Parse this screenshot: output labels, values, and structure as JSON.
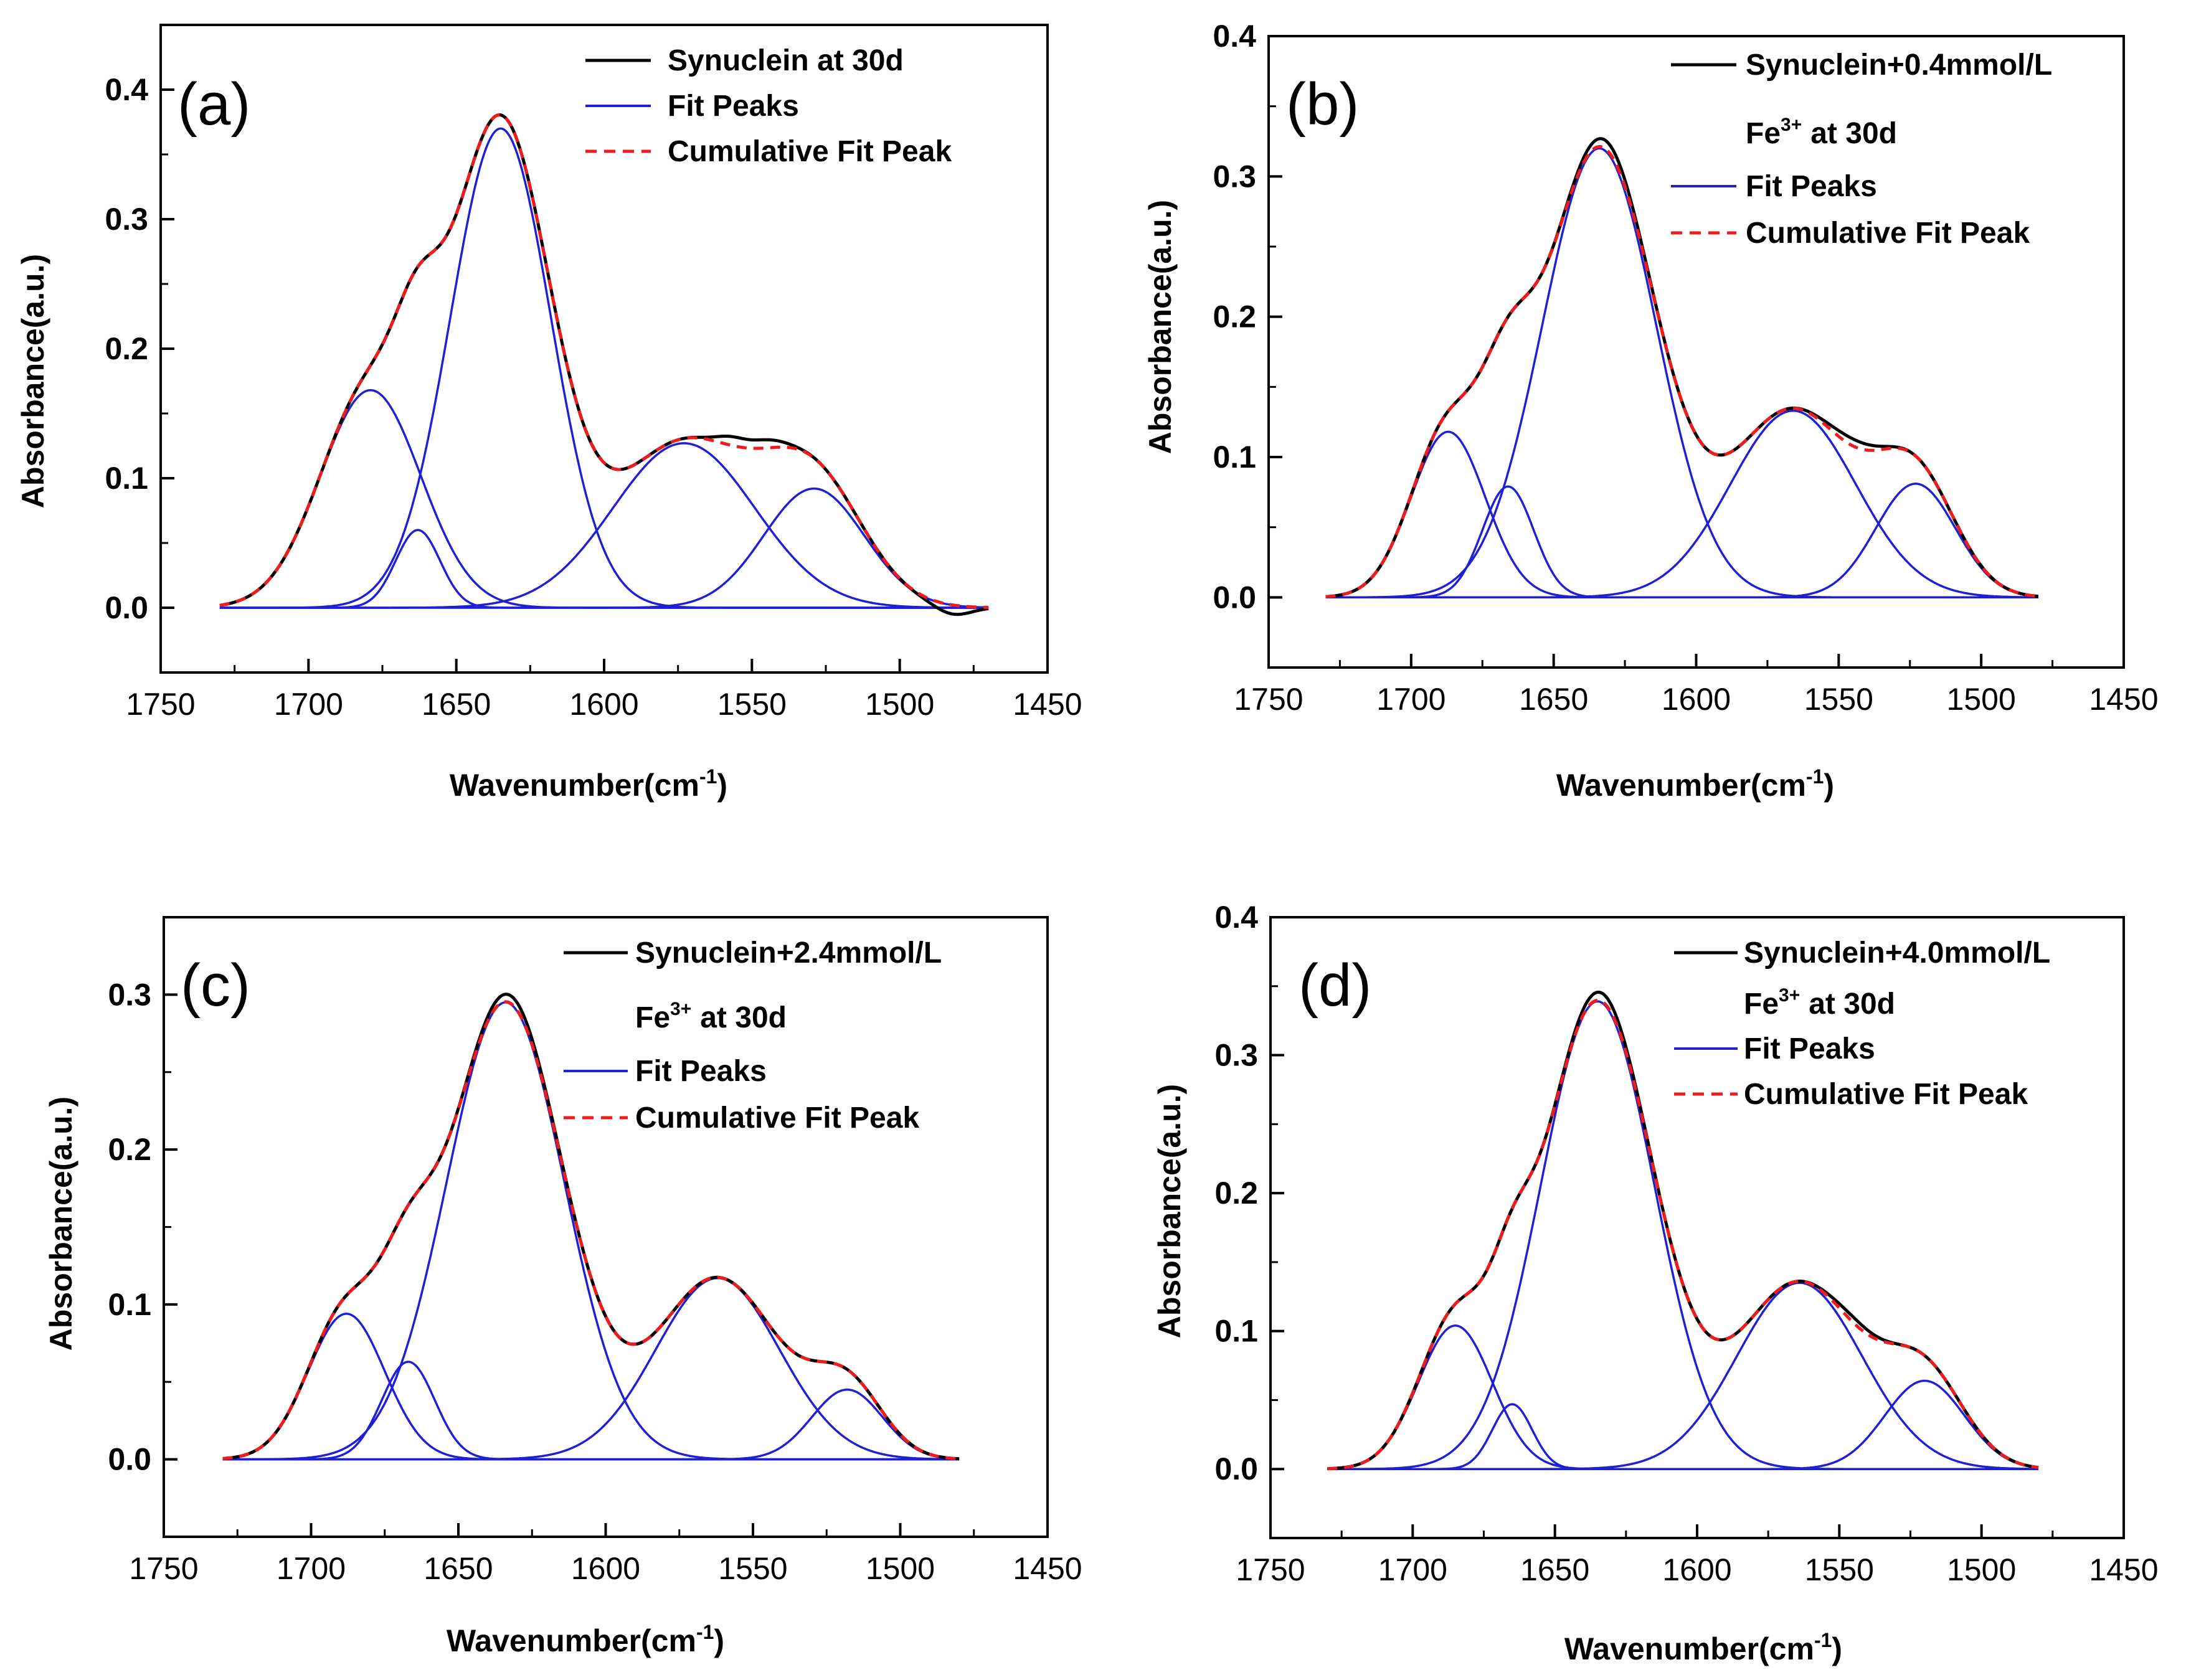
{
  "chart_data": [
    {
      "type": "line",
      "panel_label": "(a)",
      "title": "",
      "xlabel": "Wavenumber(cm",
      "xlabel_sup": "-1",
      "xlabel_close": ")",
      "ylabel": "Absorbance(a.u.)",
      "xlim": [
        1750,
        1450
      ],
      "ylim": [
        -0.05,
        0.45
      ],
      "x_ticks": [
        1750,
        1700,
        1650,
        1600,
        1550,
        1500,
        1450
      ],
      "x_tick_labels": [
        "1750",
        "1700",
        "1650",
        "1600",
        "1550",
        "1500",
        "1450"
      ],
      "y_ticks": [
        0.0,
        0.1,
        0.2,
        0.3,
        0.4
      ],
      "y_tick_labels": [
        "0.0",
        "0.1",
        "0.2",
        "0.3",
        "0.4"
      ],
      "x_range": [
        1730,
        1470
      ],
      "legend": {
        "placement": "top-right",
        "measured": "Synuclein at 30d",
        "measured_line2": "",
        "fit": "Fit Peaks",
        "cumulative": "Cumulative Fit Peak"
      },
      "colors": {
        "measured": "#000000",
        "fit": "#1f1fd6",
        "cumulative": "#ee1c1c"
      },
      "fit_peaks": [
        {
          "center": 1679,
          "height": 0.168,
          "width": 17
        },
        {
          "center": 1663,
          "height": 0.06,
          "width": 7.5
        },
        {
          "center": 1635,
          "height": 0.37,
          "width": 17
        },
        {
          "center": 1573,
          "height": 0.127,
          "width": 24
        },
        {
          "center": 1529,
          "height": 0.092,
          "width": 17
        }
      ],
      "measured_deviation": [
        {
          "center": 1557,
          "amp": 0.006,
          "width": 5
        },
        {
          "center": 1545,
          "amp": 0.006,
          "width": 6
        },
        {
          "center": 1482,
          "amp": -0.007,
          "width": 6
        }
      ]
    },
    {
      "type": "line",
      "panel_label": "(b)",
      "title": "",
      "xlabel": "Wavenumber(cm",
      "xlabel_sup": "-1",
      "xlabel_close": ")",
      "ylabel": "Absorbance(a.u.)",
      "xlim": [
        1750,
        1450
      ],
      "ylim": [
        -0.05,
        0.4
      ],
      "x_ticks": [
        1750,
        1700,
        1650,
        1600,
        1550,
        1500,
        1450
      ],
      "x_tick_labels": [
        "1750",
        "1700",
        "1650",
        "1600",
        "1550",
        "1500",
        "1450"
      ],
      "y_ticks": [
        0.0,
        0.1,
        0.2,
        0.3,
        0.4
      ],
      "y_tick_labels": [
        "0.0",
        "0.1",
        "0.2",
        "0.3",
        "0.4"
      ],
      "x_range": [
        1730,
        1480
      ],
      "legend": {
        "placement": "top-right",
        "measured": "Synuclein+0.4mmol/L",
        "measured_line2": "at 30d",
        "ion_base": "Fe",
        "ion_sup": "3+",
        "fit": "Fit Peaks",
        "cumulative": "Cumulative Fit Peak"
      },
      "colors": {
        "measured": "#000000",
        "fit": "#1f1fd6",
        "cumulative": "#ee1c1c"
      },
      "fit_peaks": [
        {
          "center": 1687,
          "height": 0.118,
          "width": 13
        },
        {
          "center": 1666,
          "height": 0.079,
          "width": 9
        },
        {
          "center": 1634,
          "height": 0.32,
          "width": 20
        },
        {
          "center": 1566,
          "height": 0.133,
          "width": 22
        },
        {
          "center": 1523,
          "height": 0.081,
          "width": 14
        }
      ],
      "measured_deviation": [
        {
          "center": 1545,
          "amp": 0.005,
          "width": 8
        },
        {
          "center": 1631,
          "amp": 0.006,
          "width": 8
        }
      ]
    },
    {
      "type": "line",
      "panel_label": "(c)",
      "title": "",
      "xlabel": "Wavenumber(cm",
      "xlabel_sup": "-1",
      "xlabel_close": ")",
      "ylabel": "Absorbance(a.u.)",
      "xlim": [
        1750,
        1450
      ],
      "ylim": [
        -0.05,
        0.35
      ],
      "x_ticks": [
        1750,
        1700,
        1650,
        1600,
        1550,
        1500,
        1450
      ],
      "x_tick_labels": [
        "1750",
        "1700",
        "1650",
        "1600",
        "1550",
        "1500",
        "1450"
      ],
      "y_ticks": [
        0.0,
        0.1,
        0.2,
        0.3
      ],
      "y_tick_labels": [
        "0.0",
        "0.1",
        "0.2",
        "0.3"
      ],
      "x_range": [
        1730,
        1480
      ],
      "legend": {
        "placement": "top-right",
        "measured": "Synuclein+2.4mmol/L",
        "measured_line2": "at 30d",
        "ion_base": "Fe",
        "ion_sup": "3+",
        "fit": "Fit Peaks",
        "cumulative": "Cumulative Fit Peak"
      },
      "colors": {
        "measured": "#000000",
        "fit": "#1f1fd6",
        "cumulative": "#ee1c1c"
      },
      "fit_peaks": [
        {
          "center": 1688,
          "height": 0.094,
          "width": 13
        },
        {
          "center": 1667,
          "height": 0.063,
          "width": 9
        },
        {
          "center": 1634,
          "height": 0.295,
          "width": 20
        },
        {
          "center": 1562,
          "height": 0.117,
          "width": 21
        },
        {
          "center": 1518,
          "height": 0.045,
          "width": 12
        }
      ],
      "measured_deviation": [
        {
          "center": 1632,
          "amp": 0.005,
          "width": 8
        }
      ]
    },
    {
      "type": "line",
      "panel_label": "(d)",
      "title": "",
      "xlabel": "Wavenumber(cm",
      "xlabel_sup": "-1",
      "xlabel_close": ")",
      "ylabel": "Absorbance(a.u.)",
      "xlim": [
        1750,
        1450
      ],
      "ylim": [
        -0.05,
        0.4
      ],
      "x_ticks": [
        1750,
        1700,
        1650,
        1600,
        1550,
        1500,
        1450
      ],
      "x_tick_labels": [
        "1750",
        "1700",
        "1650",
        "1600",
        "1550",
        "1500",
        "1450"
      ],
      "y_ticks": [
        0.0,
        0.1,
        0.2,
        0.3,
        0.4
      ],
      "y_tick_labels": [
        "0.0",
        "0.1",
        "0.2",
        "0.3",
        "0.4"
      ],
      "x_range": [
        1730,
        1480
      ],
      "legend": {
        "placement": "top-right",
        "measured": "Synuclein+4.0mmol/L",
        "measured_line2": "at 30d",
        "ion_base": "Fe",
        "ion_sup": "3+",
        "fit": "Fit Peaks",
        "cumulative": "Cumulative Fit Peak"
      },
      "colors": {
        "measured": "#000000",
        "fit": "#1f1fd6",
        "cumulative": "#ee1c1c"
      },
      "fit_peaks": [
        {
          "center": 1685,
          "height": 0.104,
          "width": 13
        },
        {
          "center": 1665,
          "height": 0.047,
          "width": 7
        },
        {
          "center": 1635,
          "height": 0.339,
          "width": 20
        },
        {
          "center": 1564,
          "height": 0.135,
          "width": 22
        },
        {
          "center": 1520,
          "height": 0.064,
          "width": 14
        }
      ],
      "measured_deviation": [
        {
          "center": 1545,
          "amp": 0.004,
          "width": 7
        },
        {
          "center": 1633,
          "amp": 0.006,
          "width": 8
        }
      ]
    }
  ]
}
